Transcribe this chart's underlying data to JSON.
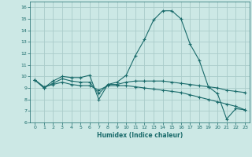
{
  "xlabel": "Humidex (Indice chaleur)",
  "ylabel": "",
  "xlim": [
    -0.5,
    23.5
  ],
  "ylim": [
    6,
    16.5
  ],
  "xticks": [
    0,
    1,
    2,
    3,
    4,
    5,
    6,
    7,
    8,
    9,
    10,
    11,
    12,
    13,
    14,
    15,
    16,
    17,
    18,
    19,
    20,
    21,
    22,
    23
  ],
  "yticks": [
    6,
    7,
    8,
    9,
    10,
    11,
    12,
    13,
    14,
    15,
    16
  ],
  "bg_color": "#cce8e5",
  "grid_color": "#aaccca",
  "line_color": "#1a6b6b",
  "line1_x": [
    0,
    1,
    2,
    3,
    4,
    5,
    6,
    7,
    8,
    9,
    10,
    11,
    12,
    13,
    14,
    15,
    16,
    17,
    18,
    19,
    20,
    21,
    22,
    23
  ],
  "line1_y": [
    9.7,
    9.0,
    9.6,
    10.0,
    9.9,
    9.9,
    10.1,
    8.0,
    9.3,
    9.5,
    10.1,
    11.8,
    13.2,
    14.9,
    15.7,
    15.7,
    15.0,
    12.8,
    11.4,
    9.1,
    8.5,
    6.3,
    7.2,
    7.1
  ],
  "line2_x": [
    0,
    1,
    2,
    3,
    4,
    5,
    6,
    7,
    8,
    9,
    10,
    11,
    12,
    13,
    14,
    15,
    16,
    17,
    18,
    19,
    20,
    21,
    22,
    23
  ],
  "line2_y": [
    9.7,
    9.0,
    9.4,
    9.8,
    9.6,
    9.5,
    9.5,
    8.5,
    9.3,
    9.3,
    9.5,
    9.6,
    9.6,
    9.6,
    9.6,
    9.5,
    9.4,
    9.3,
    9.2,
    9.1,
    9.0,
    8.8,
    8.7,
    8.6
  ],
  "line3_x": [
    0,
    1,
    2,
    3,
    4,
    5,
    6,
    7,
    8,
    9,
    10,
    11,
    12,
    13,
    14,
    15,
    16,
    17,
    18,
    19,
    20,
    21,
    22,
    23
  ],
  "line3_y": [
    9.7,
    9.1,
    9.3,
    9.5,
    9.3,
    9.2,
    9.2,
    8.8,
    9.2,
    9.2,
    9.2,
    9.1,
    9.0,
    8.9,
    8.8,
    8.7,
    8.6,
    8.4,
    8.2,
    8.0,
    7.8,
    7.6,
    7.4,
    7.1
  ]
}
